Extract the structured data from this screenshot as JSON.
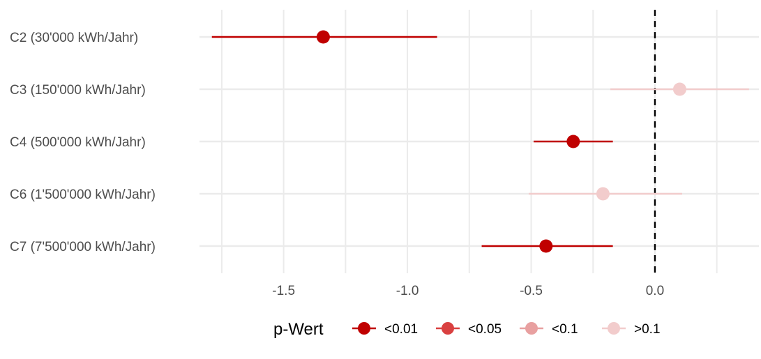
{
  "chart_data": {
    "type": "scatter",
    "subtype": "forest-plot",
    "title": "",
    "xlabel": "",
    "ylabel": "",
    "xlim": [
      -1.84,
      0.42
    ],
    "x_ticks": [
      -1.5,
      -1.0,
      -0.5,
      0.0
    ],
    "x_tick_labels": [
      "-1.5",
      "-1.0",
      "-0.5",
      "0.0"
    ],
    "reference_line": {
      "x": 0.0,
      "style": "dashed",
      "color": "#000000"
    },
    "grid": true,
    "categories": [
      "C2 (30'000 kWh/Jahr)",
      "C3 (150'000 kWh/Jahr)",
      "C4 (500'000 kWh/Jahr)",
      "C6 (1'500'000 kWh/Jahr)",
      "C7 (7'500'000 kWh/Jahr)"
    ],
    "points": [
      {
        "category": "C2 (30'000 kWh/Jahr)",
        "estimate": -1.34,
        "lower": -1.79,
        "upper": -0.88,
        "pgroup": "<0.01"
      },
      {
        "category": "C3 (150'000 kWh/Jahr)",
        "estimate": 0.1,
        "lower": -0.18,
        "upper": 0.38,
        "pgroup": ">0.1"
      },
      {
        "category": "C4 (500'000 kWh/Jahr)",
        "estimate": -0.33,
        "lower": -0.49,
        "upper": -0.17,
        "pgroup": "<0.01"
      },
      {
        "category": "C6 (1'500'000 kWh/Jahr)",
        "estimate": -0.21,
        "lower": -0.51,
        "upper": 0.11,
        "pgroup": ">0.1"
      },
      {
        "category": "C7 (7'500'000 kWh/Jahr)",
        "estimate": -0.44,
        "lower": -0.7,
        "upper": -0.17,
        "pgroup": "<0.01"
      }
    ],
    "legend": {
      "title": "p-Wert",
      "position": "bottom",
      "items": [
        {
          "label": "<0.01",
          "color": "#c00000"
        },
        {
          "label": "<0.05",
          "color": "#d94040"
        },
        {
          "label": "<0.1",
          "color": "#e8a0a0"
        },
        {
          "label": ">0.1",
          "color": "#f2cccc"
        }
      ]
    },
    "colors": {
      "grid": "#ebebeb",
      "reference": "#000000"
    }
  }
}
